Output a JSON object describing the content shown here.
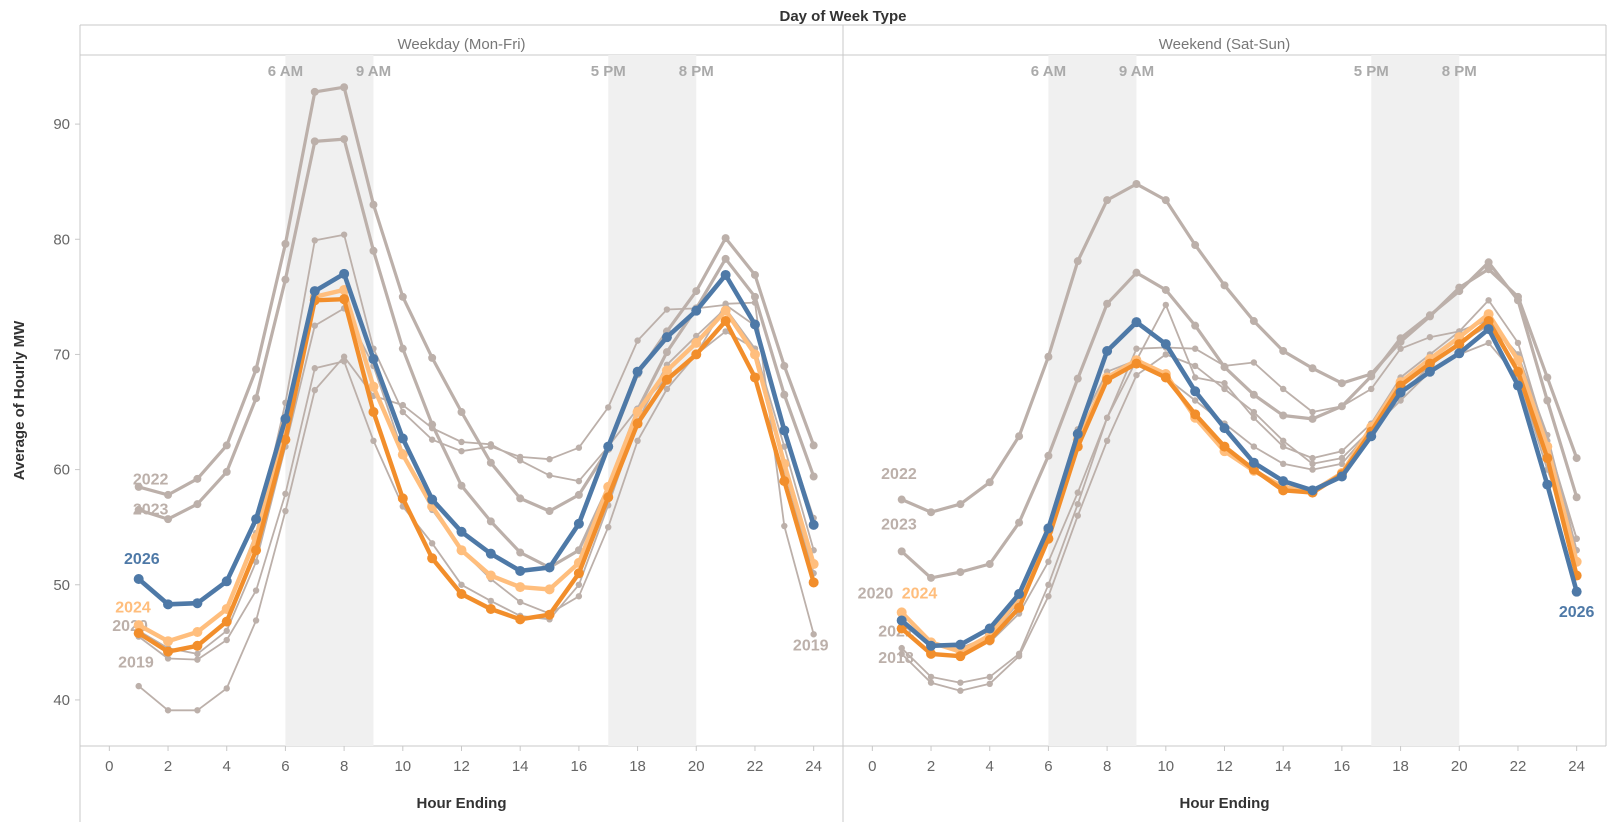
{
  "page": {
    "header": "Day of Week Type",
    "y_axis_title": "Average of Hourly MW",
    "x_axis_title": "Hour Ending"
  },
  "chart_data": {
    "type": "line",
    "colors": {
      "grey": "#bcb0aa",
      "blue": "#4e79a7",
      "orange": "#f28e2b",
      "light_orange": "#ffbe7d",
      "band": "#f0f0f0",
      "axis": "#c8c8c8",
      "tick_text": "#666666",
      "band_text": "#aaaaaa"
    },
    "y_ticks": [
      40,
      50,
      60,
      70,
      80,
      90
    ],
    "x_ticks": [
      0,
      2,
      4,
      6,
      8,
      10,
      12,
      14,
      16,
      18,
      20,
      22,
      24
    ],
    "ylim": [
      36,
      96
    ],
    "xlim": [
      -1,
      25
    ],
    "panels": [
      {
        "name": "Weekday (Mon-Fri)",
        "bands": [
          {
            "x0": 6,
            "x1": 9,
            "label_start": "6 AM",
            "label_end": "9 AM"
          },
          {
            "x0": 17,
            "x1": 20,
            "label_start": "5 PM",
            "label_end": "8 PM"
          }
        ],
        "series": [
          {
            "name": "2022",
            "color": "grey",
            "width": 3.2,
            "label_x": 0.8,
            "label_y": 58.7,
            "values": [
              58.5,
              57.8,
              59.2,
              62.1,
              68.7,
              79.6,
              92.8,
              93.2,
              83.0,
              75.0,
              69.7,
              65.0,
              60.6,
              57.5,
              56.4,
              57.8,
              61.8,
              68.3,
              72.0,
              75.5,
              80.1,
              76.9,
              69.0,
              62.1
            ]
          },
          {
            "name": "2023",
            "color": "grey",
            "width": 3.2,
            "label_x": 0.8,
            "label_y": 56.1,
            "values": [
              56.5,
              55.7,
              57.0,
              59.8,
              66.2,
              76.5,
              88.5,
              88.7,
              79.0,
              70.5,
              63.9,
              58.6,
              55.5,
              52.8,
              51.5,
              53.0,
              58.5,
              65.2,
              70.2,
              74.0,
              78.3,
              75.0,
              66.5,
              59.4
            ]
          },
          {
            "name": "",
            "color": "grey",
            "width": 1.8,
            "values": [
              46.5,
              45.0,
              45.8,
              48.0,
              54.5,
              65.8,
              79.9,
              80.4,
              70.5,
              65.0,
              62.6,
              61.6,
              62.0,
              61.1,
              60.9,
              61.9,
              65.4,
              71.2,
              73.9,
              74.0,
              74.3,
              72.5,
              63.5,
              55.8
            ]
          },
          {
            "name": "",
            "color": "grey",
            "width": 1.8,
            "values": [
              46.0,
              44.5,
              44.0,
              46.0,
              52.0,
              62.0,
              72.5,
              74.0,
              69.0,
              61.5,
              56.5,
              53.0,
              50.5,
              48.5,
              47.5,
              49.0,
              55.0,
              62.5,
              67.0,
              70.0,
              72.0,
              70.5,
              62.0,
              53.0
            ]
          },
          {
            "name": "2020",
            "color": "grey",
            "width": 1.8,
            "label_x": 0.1,
            "label_y": 46.0,
            "values": [
              45.5,
              43.6,
              43.5,
              45.2,
              49.5,
              57.9,
              68.8,
              69.4,
              62.5,
              56.8,
              53.6,
              50.0,
              48.6,
              47.3,
              47.0,
              50.0,
              56.9,
              64.2,
              69.1,
              71.6,
              74.0,
              70.5,
              60.0,
              51.0
            ]
          },
          {
            "name": "2019",
            "color": "grey",
            "width": 1.8,
            "label_x": 0.3,
            "label_y": 42.8,
            "end_label": "2019",
            "end_label_x": 23.9,
            "end_label_y": 44.3,
            "values": [
              41.2,
              39.1,
              39.1,
              41.0,
              46.9,
              56.4,
              66.9,
              69.8,
              66.4,
              65.6,
              63.6,
              62.4,
              62.2,
              60.8,
              59.5,
              59.0,
              62.0,
              65.3,
              68.0,
              70.0,
              74.4,
              74.5,
              55.1,
              45.7
            ]
          },
          {
            "name": "2024",
            "color": "light_orange",
            "width": 4.4,
            "label_x": 0.2,
            "label_y": 47.6,
            "values": [
              46.5,
              45.1,
              45.9,
              47.9,
              54.1,
              63.8,
              75.0,
              75.6,
              67.2,
              61.3,
              56.8,
              53.0,
              50.8,
              49.8,
              49.6,
              51.9,
              58.5,
              65.0,
              68.6,
              71.0,
              73.8,
              70.0,
              60.5,
              51.8
            ]
          },
          {
            "name": "",
            "color": "orange",
            "width": 4.4,
            "values": [
              45.8,
              44.2,
              44.7,
              46.8,
              53.0,
              62.6,
              74.7,
              74.8,
              65.0,
              57.5,
              52.3,
              49.2,
              47.9,
              47.0,
              47.4,
              51.0,
              57.6,
              64.0,
              67.8,
              70.0,
              72.9,
              68.0,
              59.0,
              50.2
            ]
          },
          {
            "name": "2026",
            "color": "blue",
            "width": 4.6,
            "label_x": 0.5,
            "label_y": 51.8,
            "bold": true,
            "values": [
              50.5,
              48.3,
              48.4,
              50.3,
              55.7,
              64.4,
              75.5,
              77.0,
              69.6,
              62.7,
              57.4,
              54.6,
              52.7,
              51.2,
              51.5,
              55.3,
              62.0,
              68.5,
              71.5,
              73.8,
              76.9,
              72.6,
              63.4,
              55.2
            ]
          }
        ]
      },
      {
        "name": "Weekend (Sat-Sun)",
        "bands": [
          {
            "x0": 6,
            "x1": 9,
            "label_start": "6 AM",
            "label_end": "9 AM"
          },
          {
            "x0": 17,
            "x1": 20,
            "label_start": "5 PM",
            "label_end": "8 PM"
          }
        ],
        "series": [
          {
            "name": "2022",
            "color": "grey",
            "width": 3.2,
            "label_x": 0.3,
            "label_y": 59.2,
            "values": [
              57.4,
              56.3,
              57.0,
              58.9,
              62.9,
              69.8,
              78.1,
              83.4,
              84.8,
              83.4,
              79.5,
              76.0,
              72.9,
              70.3,
              68.8,
              67.5,
              68.3,
              71.1,
              73.3,
              75.8,
              77.4,
              75.0,
              68.0,
              61.0
            ]
          },
          {
            "name": "2023",
            "color": "grey",
            "width": 3.2,
            "label_x": 0.3,
            "label_y": 54.8,
            "values": [
              52.9,
              50.6,
              51.1,
              51.8,
              55.4,
              61.2,
              67.9,
              74.4,
              77.1,
              75.6,
              72.5,
              68.9,
              66.5,
              64.7,
              64.4,
              65.5,
              68.1,
              71.4,
              73.4,
              75.5,
              78.0,
              74.7,
              66.0,
              57.6
            ]
          },
          {
            "name": "",
            "color": "grey",
            "width": 1.8,
            "values": [
              46.5,
              45.0,
              44.5,
              45.0,
              47.5,
              52.0,
              58.0,
              64.5,
              70.5,
              70.6,
              70.5,
              69.0,
              69.3,
              67.0,
              65.0,
              65.5,
              67.0,
              70.5,
              71.5,
              72.0,
              74.7,
              71.0,
              62.5,
              54.0
            ]
          },
          {
            "name": "2021",
            "color": "grey",
            "width": 1.8,
            "label_x": 0.2,
            "label_y": 45.5,
            "values": [
              44.5,
              42.0,
              41.5,
              42.0,
              44.0,
              50.0,
              57.0,
              64.5,
              69.5,
              74.3,
              68.0,
              67.5,
              64.5,
              62.0,
              61.0,
              61.6,
              64.0,
              68.0,
              70.0,
              72.0,
              73.0,
              70.0,
              62.0,
              54.0
            ]
          },
          {
            "name": "2018",
            "color": "grey",
            "width": 1.8,
            "label_x": 0.2,
            "label_y": 43.2,
            "values": [
              44.0,
              41.5,
              40.8,
              41.4,
              43.8,
              49.0,
              56.0,
              62.5,
              68.2,
              70.0,
              69.0,
              67.0,
              65.0,
              62.5,
              60.5,
              61.0,
              63.5,
              66.0,
              68.5,
              70.0,
              71.0,
              68.0,
              60.0,
              53.0
            ]
          },
          {
            "name": "2020",
            "color": "grey",
            "width": 1.8,
            "label_x": -0.5,
            "label_y": 48.8,
            "values": [
              47.0,
              45.0,
              44.5,
              45.5,
              48.5,
              55.0,
              63.5,
              68.5,
              69.5,
              68.0,
              66.0,
              64.0,
              62.0,
              60.5,
              60.0,
              60.5,
              63.5,
              66.5,
              69.0,
              71.0,
              72.5,
              70.0,
              63.0,
              53.0
            ]
          },
          {
            "name": "2024",
            "color": "light_orange",
            "width": 4.4,
            "label_x": 1.0,
            "label_y": 48.8,
            "values": [
              47.6,
              45.0,
              44.2,
              45.6,
              48.9,
              54.7,
              62.6,
              68.0,
              69.5,
              68.3,
              64.5,
              61.6,
              59.9,
              58.5,
              58.1,
              59.7,
              63.7,
              67.6,
              69.6,
              71.5,
              73.5,
              69.5,
              62.0,
              52.0
            ]
          },
          {
            "name": "",
            "color": "orange",
            "width": 4.4,
            "values": [
              46.2,
              44.0,
              43.8,
              45.2,
              48.0,
              54.0,
              62.0,
              67.8,
              69.2,
              68.0,
              64.8,
              62.0,
              60.0,
              58.2,
              58.0,
              59.6,
              63.3,
              67.3,
              69.2,
              70.9,
              72.9,
              68.5,
              61.0,
              50.8
            ]
          },
          {
            "name": "2026",
            "color": "blue",
            "width": 4.6,
            "bold": true,
            "end_label": "2026",
            "end_label_x": 24.0,
            "end_label_y": 47.2,
            "values": [
              46.9,
              44.7,
              44.8,
              46.2,
              49.2,
              54.9,
              63.1,
              70.3,
              72.8,
              70.9,
              66.8,
              63.6,
              60.6,
              59.0,
              58.2,
              59.4,
              62.9,
              66.7,
              68.5,
              70.1,
              72.2,
              67.3,
              58.7,
              49.4
            ]
          }
        ]
      }
    ]
  }
}
